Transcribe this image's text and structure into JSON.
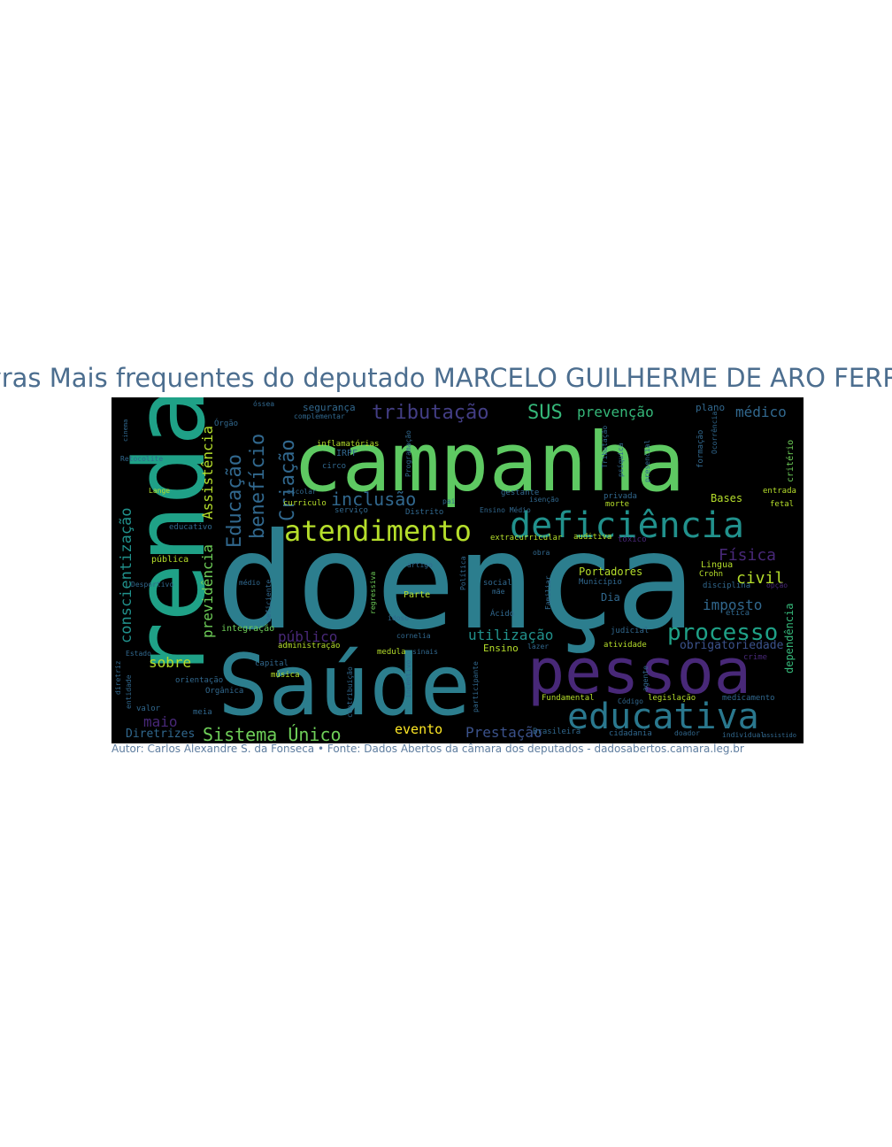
{
  "title": "Palavras Mais frequentes do deputado MARCELO GUILHERME DE ARO FERREIRA",
  "caption": "Autor: Carlos Alexandre S. da Fonseca • Fonte: Dados Abertos da câmara dos deputados - dadosabertos.camara.leg.br",
  "colors": {
    "background": "#000000",
    "title": "#4c6e8f",
    "caption": "#5f7ea0",
    "palette": [
      "#3b528b",
      "#31688e",
      "#2c7e8e",
      "#21918c",
      "#1fa187",
      "#35b779",
      "#6ece58",
      "#b5de2b",
      "#fde725",
      "#482878"
    ]
  },
  "words": [
    {
      "text": "doença",
      "color": "#2c7e8e"
    },
    {
      "text": "campanha",
      "color": "#5ec962"
    },
    {
      "text": "renda",
      "color": "#1fa187"
    },
    {
      "text": "Saúde",
      "color": "#2c7e8e"
    },
    {
      "text": "pessoa",
      "color": "#482878"
    },
    {
      "text": "deficiência",
      "color": "#21918c"
    },
    {
      "text": "educativa",
      "color": "#2a788e"
    },
    {
      "text": "atendimento",
      "color": "#b5de2b"
    },
    {
      "text": "processo",
      "color": "#1fa187"
    },
    {
      "text": "tributação",
      "color": "#433e85"
    },
    {
      "text": "SUS",
      "color": "#35b779"
    },
    {
      "text": "prevenção",
      "color": "#35b779"
    },
    {
      "text": "médico",
      "color": "#31688e"
    },
    {
      "text": "Criação",
      "color": "#31688e"
    },
    {
      "text": "benefício",
      "color": "#31688e"
    },
    {
      "text": "Educação",
      "color": "#31688e"
    },
    {
      "text": "Assistência",
      "color": "#b5de2b"
    },
    {
      "text": "previdência",
      "color": "#6ece58"
    },
    {
      "text": "conscientização",
      "color": "#21918c"
    },
    {
      "text": "inclusão",
      "color": "#31688e"
    },
    {
      "text": "Física",
      "color": "#482878"
    },
    {
      "text": "civil",
      "color": "#b5de2b"
    },
    {
      "text": "imposto",
      "color": "#31688e"
    },
    {
      "text": "Sistema Único",
      "color": "#6ece58"
    },
    {
      "text": "sobre",
      "color": "#b5de2b"
    },
    {
      "text": "maio",
      "color": "#482878"
    },
    {
      "text": "Diretrizes",
      "color": "#31688e"
    },
    {
      "text": "evento",
      "color": "#fde725"
    },
    {
      "text": "Prestação",
      "color": "#3b528b"
    },
    {
      "text": "utilização",
      "color": "#21918c"
    },
    {
      "text": "público",
      "color": "#482878"
    },
    {
      "text": "Portadores",
      "color": "#b5de2b"
    },
    {
      "text": "Bases",
      "color": "#b5de2b"
    },
    {
      "text": "Dia",
      "color": "#31688e"
    },
    {
      "text": "obrigatoriedade",
      "color": "#3b528b"
    },
    {
      "text": "dependência",
      "color": "#35b779"
    },
    {
      "text": "segurança",
      "color": "#31688e"
    },
    {
      "text": "plano",
      "color": "#31688e"
    },
    {
      "text": "Ensino",
      "color": "#b5de2b"
    },
    {
      "text": "pública",
      "color": "#b5de2b"
    },
    {
      "text": "Lingua",
      "color": "#b5de2b"
    },
    {
      "text": "integração",
      "color": "#6ece58"
    },
    {
      "text": "administração",
      "color": "#b5de2b"
    },
    {
      "text": "educativo",
      "color": "#31688e"
    },
    {
      "text": "curriculo",
      "color": "#b5de2b"
    },
    {
      "text": "escolar",
      "color": "#31688e"
    },
    {
      "text": "circo",
      "color": "#31688e"
    },
    {
      "text": "inflamatórias",
      "color": "#b5de2b"
    },
    {
      "text": "Município",
      "color": "#31688e"
    },
    {
      "text": "disciplina",
      "color": "#31688e"
    },
    {
      "text": "Órgão",
      "color": "#31688e"
    },
    {
      "text": "orientação",
      "color": "#31688e"
    },
    {
      "text": "Orgânica",
      "color": "#31688e"
    },
    {
      "text": "valor",
      "color": "#31688e"
    },
    {
      "text": "meia",
      "color": "#31688e"
    },
    {
      "text": "capital",
      "color": "#31688e"
    },
    {
      "text": "música",
      "color": "#b5de2b"
    },
    {
      "text": "medula",
      "color": "#b5de2b"
    },
    {
      "text": "social",
      "color": "#31688e"
    },
    {
      "text": "Parte",
      "color": "#b5de2b"
    },
    {
      "text": "Ácido",
      "color": "#31688e"
    },
    {
      "text": "atividade",
      "color": "#b5de2b"
    },
    {
      "text": "judicial",
      "color": "#31688e"
    },
    {
      "text": "legislação",
      "color": "#b5de2b"
    },
    {
      "text": "medicamento",
      "color": "#31688e"
    },
    {
      "text": "cidadania",
      "color": "#31688e"
    },
    {
      "text": "Fundamental",
      "color": "#b5de2b"
    },
    {
      "text": "crime",
      "color": "#482878"
    },
    {
      "text": "ética",
      "color": "#31688e"
    },
    {
      "text": "opção",
      "color": "#482878"
    },
    {
      "text": "IRPF",
      "color": "#31688e"
    },
    {
      "text": "Tributação",
      "color": "#31688e"
    },
    {
      "text": "formação",
      "color": "#31688e"
    },
    {
      "text": "critério",
      "color": "#6ece58"
    },
    {
      "text": "entrada",
      "color": "#b5de2b"
    },
    {
      "text": "fetal",
      "color": "#b5de2b"
    },
    {
      "text": "auditiva",
      "color": "#b5de2b"
    },
    {
      "text": "tóxico",
      "color": "#482878"
    },
    {
      "text": "gestante",
      "color": "#31688e"
    },
    {
      "text": "Distrito",
      "color": "#31688e"
    },
    {
      "text": "privada",
      "color": "#31688e"
    },
    {
      "text": "morte",
      "color": "#b5de2b"
    },
    {
      "text": "serviço",
      "color": "#31688e"
    },
    {
      "text": "Desportivo",
      "color": "#31688e"
    },
    {
      "text": "Lange",
      "color": "#b5de2b"
    },
    {
      "text": "Retocolite",
      "color": "#31688e"
    },
    {
      "text": "cinema",
      "color": "#31688e"
    },
    {
      "text": "Ocorrência",
      "color": "#31688e"
    },
    {
      "text": "Política",
      "color": "#31688e"
    },
    {
      "text": "regressiva",
      "color": "#6ece58"
    },
    {
      "text": "artigo",
      "color": "#31688e"
    },
    {
      "text": "extracurricular",
      "color": "#b5de2b"
    },
    {
      "text": "complementar",
      "color": "#31688e"
    },
    {
      "text": "psíquica",
      "color": "#31688e"
    },
    {
      "text": "presencial",
      "color": "#31688e"
    },
    {
      "text": "Crohn",
      "color": "#b5de2b"
    },
    {
      "text": "médio",
      "color": "#31688e"
    },
    {
      "text": "idoso",
      "color": "#31688e"
    },
    {
      "text": "obra",
      "color": "#31688e"
    },
    {
      "text": "cornelia",
      "color": "#31688e"
    },
    {
      "text": "Brasileira",
      "color": "#31688e"
    },
    {
      "text": "Ensino Médio",
      "color": "#31688e"
    },
    {
      "text": "Estado",
      "color": "#31688e"
    },
    {
      "text": "diretriz",
      "color": "#31688e"
    },
    {
      "text": "entidade",
      "color": "#31688e"
    },
    {
      "text": "participante",
      "color": "#31688e"
    },
    {
      "text": "contribuição",
      "color": "#31688e"
    },
    {
      "text": "Familiar",
      "color": "#31688e"
    },
    {
      "text": "óssea",
      "color": "#31688e"
    },
    {
      "text": "deficiente",
      "color": "#31688e"
    },
    {
      "text": "incentivo",
      "color": "#31688e"
    },
    {
      "text": "Programação",
      "color": "#31688e"
    },
    {
      "text": "agente",
      "color": "#31688e"
    },
    {
      "text": "lazer",
      "color": "#31688e"
    },
    {
      "text": "pai",
      "color": "#31688e"
    },
    {
      "text": "mãe",
      "color": "#31688e"
    },
    {
      "text": "sinais",
      "color": "#31688e"
    },
    {
      "text": "isenção",
      "color": "#31688e"
    },
    {
      "text": "Código",
      "color": "#31688e"
    },
    {
      "text": "individual",
      "color": "#31688e"
    },
    {
      "text": "doador",
      "color": "#31688e"
    },
    {
      "text": "assistido",
      "color": "#31688e"
    }
  ]
}
